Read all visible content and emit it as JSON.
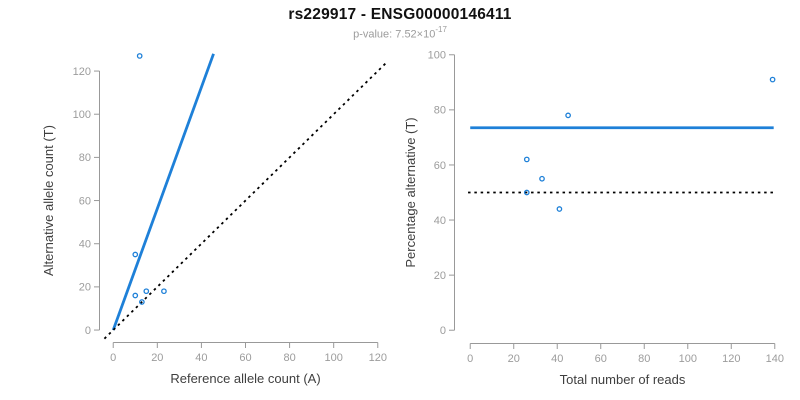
{
  "colors": {
    "accent_blue": "#1E80D8",
    "reference_black": "#000000",
    "axis_gray": "#999999",
    "tick_label_gray": "#9C9C9C",
    "axis_title_gray": "#3F3F3F",
    "title_black": "#111111",
    "subtitle_gray": "#9C9C9C",
    "background": "#FFFFFF"
  },
  "chart_data": {
    "title": "rs229917 - ENSG00000146411",
    "subtitle": {
      "prefix": "p-value: 7.52×10",
      "exponent": "-17"
    },
    "layout_hint": "two scatter panels side by side, no grid, gray axes with outward ticks, no legend",
    "panels": [
      {
        "type": "scatter",
        "xlabel": "Reference allele count (A)",
        "ylabel": "Alternative allele count (T)",
        "xticks": [
          0,
          20,
          40,
          60,
          80,
          100,
          120
        ],
        "yticks": [
          0,
          20,
          40,
          60,
          80,
          100,
          120
        ],
        "xlim": [
          -6,
          126
        ],
        "ylim": [
          -6,
          133
        ],
        "grid": false,
        "points": [
          [
            10,
            16
          ],
          [
            10,
            35
          ],
          [
            12,
            127
          ],
          [
            13,
            13
          ],
          [
            15,
            18
          ],
          [
            23,
            18
          ]
        ],
        "lines": [
          {
            "name": "regression-line",
            "style": "solid",
            "color_key": "accent_blue",
            "width": 2.8,
            "x1": 0,
            "y1": 0,
            "x2": 45.5,
            "y2": 128
          },
          {
            "name": "identity-line",
            "style": "dotted",
            "color_key": "reference_black",
            "width": 1.8,
            "x1": -4,
            "y1": -4,
            "x2": 124.5,
            "y2": 124.5
          }
        ]
      },
      {
        "type": "scatter",
        "xlabel": "Total number of reads",
        "ylabel": "Percentage alternative (T)",
        "xticks": [
          0,
          20,
          40,
          60,
          80,
          100,
          120,
          140
        ],
        "yticks": [
          0,
          20,
          40,
          60,
          80,
          100
        ],
        "xlim": [
          -7,
          147
        ],
        "ylim": [
          -5,
          105
        ],
        "grid": false,
        "points": [
          [
            26,
            62
          ],
          [
            45,
            78
          ],
          [
            139,
            91
          ],
          [
            26,
            50
          ],
          [
            33,
            55
          ],
          [
            41,
            44
          ]
        ],
        "lines": [
          {
            "name": "mean-percentage-line",
            "style": "solid",
            "color_key": "accent_blue",
            "width": 2.8,
            "x1": 0,
            "y1": 73.5,
            "x2": 139.5,
            "y2": 73.5
          },
          {
            "name": "fifty-percent-line",
            "style": "dotted",
            "color_key": "reference_black",
            "width": 1.8,
            "x1": -1,
            "y1": 50,
            "x2": 140.5,
            "y2": 50
          }
        ]
      }
    ]
  }
}
